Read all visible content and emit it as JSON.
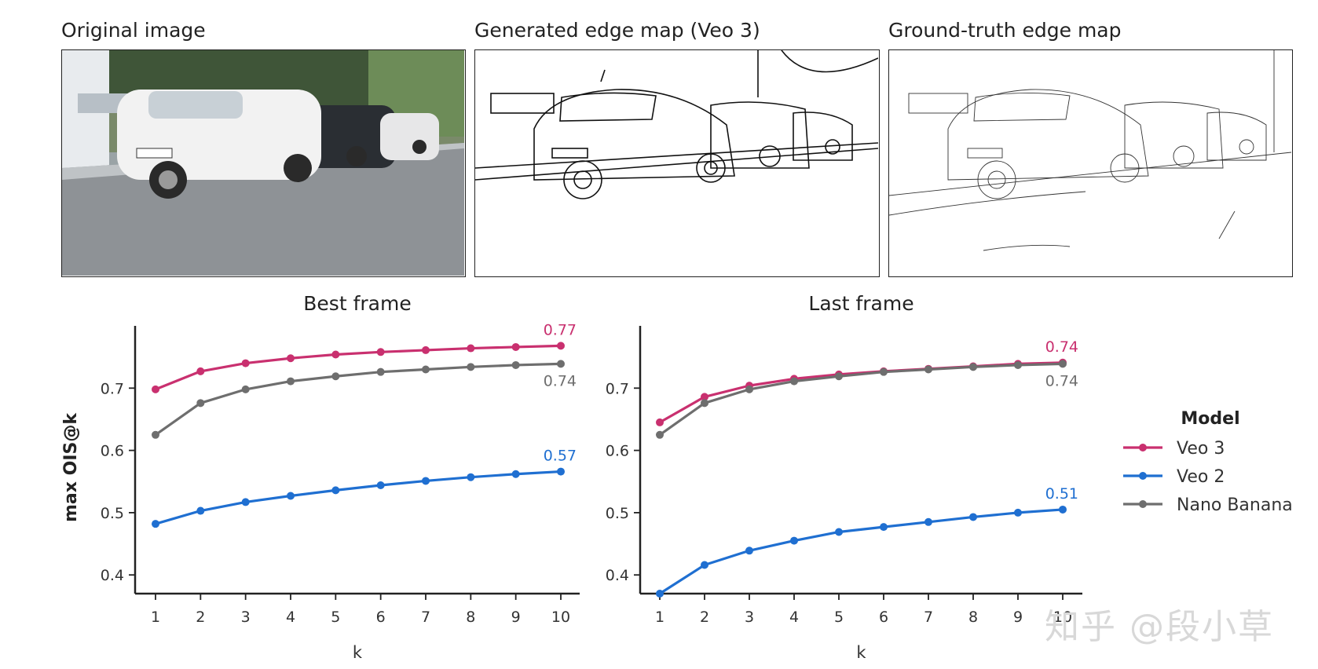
{
  "panels": {
    "original": "Original image",
    "generated": "Generated edge map (Veo 3)",
    "ground_truth": "Ground-truth edge map"
  },
  "colors": {
    "veo3": "#c9306f",
    "veo2": "#1f6fd1",
    "nano": "#6e6e6e"
  },
  "chart_data": [
    {
      "type": "line",
      "title": "Best frame",
      "xlabel": "k",
      "ylabel": "max OIS@k",
      "x": [
        1,
        2,
        3,
        4,
        5,
        6,
        7,
        8,
        9,
        10
      ],
      "ylim": [
        0.37,
        0.8
      ],
      "yticks": [
        "0.4",
        "0.5",
        "0.6",
        "0.7"
      ],
      "series": [
        {
          "name": "Veo 3",
          "color": "#c9306f",
          "values": [
            0.698,
            0.727,
            0.74,
            0.748,
            0.754,
            0.758,
            0.761,
            0.764,
            0.766,
            0.768
          ],
          "end_label": "0.77"
        },
        {
          "name": "Veo 2",
          "color": "#1f6fd1",
          "values": [
            0.482,
            0.503,
            0.517,
            0.527,
            0.536,
            0.544,
            0.551,
            0.557,
            0.562,
            0.566
          ],
          "end_label": "0.57"
        },
        {
          "name": "Nano Banana",
          "color": "#6e6e6e",
          "values": [
            0.625,
            0.676,
            0.698,
            0.711,
            0.719,
            0.726,
            0.73,
            0.734,
            0.737,
            0.739
          ],
          "end_label": "0.74"
        }
      ]
    },
    {
      "type": "line",
      "title": "Last frame",
      "xlabel": "k",
      "ylabel": "",
      "x": [
        1,
        2,
        3,
        4,
        5,
        6,
        7,
        8,
        9,
        10
      ],
      "ylim": [
        0.37,
        0.8
      ],
      "yticks": [
        "0.4",
        "0.5",
        "0.6",
        "0.7"
      ],
      "series": [
        {
          "name": "Veo 3",
          "color": "#c9306f",
          "values": [
            0.645,
            0.686,
            0.704,
            0.715,
            0.722,
            0.727,
            0.731,
            0.735,
            0.739,
            0.741
          ],
          "end_label": "0.74"
        },
        {
          "name": "Veo 2",
          "color": "#1f6fd1",
          "values": [
            0.37,
            0.416,
            0.439,
            0.455,
            0.469,
            0.477,
            0.485,
            0.493,
            0.5,
            0.505
          ],
          "end_label": "0.51"
        },
        {
          "name": "Nano Banana",
          "color": "#6e6e6e",
          "values": [
            0.625,
            0.676,
            0.698,
            0.711,
            0.719,
            0.726,
            0.73,
            0.734,
            0.737,
            0.739
          ],
          "end_label": "0.74"
        }
      ]
    }
  ],
  "legend": {
    "title": "Model",
    "placement": "right",
    "items": [
      "Veo 3",
      "Veo 2",
      "Nano Banana"
    ]
  },
  "watermark": "知乎 @段小草"
}
